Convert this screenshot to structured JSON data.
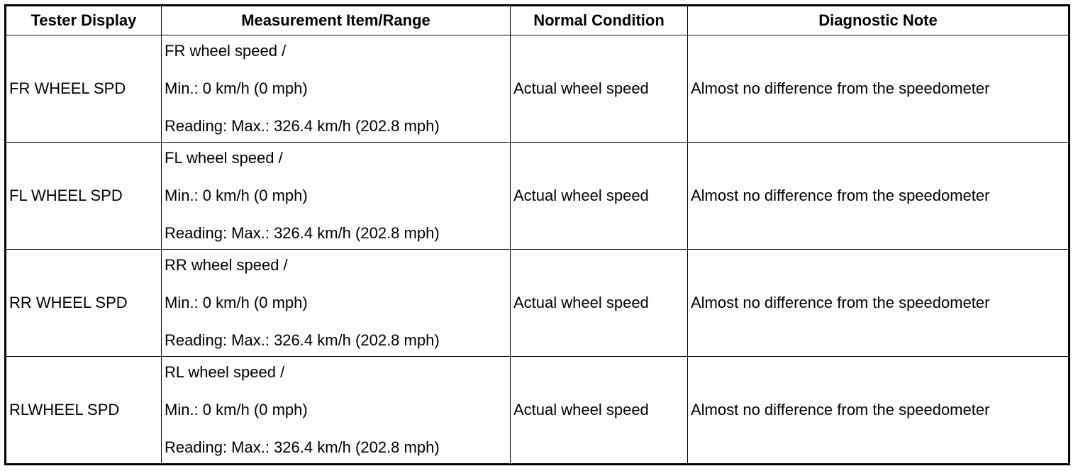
{
  "table": {
    "headers": {
      "tester_display": "Tester Display",
      "measurement": "Measurement Item/Range",
      "normal": "Normal Condition",
      "note": "Diagnostic Note"
    },
    "rows": [
      {
        "tester_display": "FR WHEEL SPD",
        "item": "FR wheel speed /",
        "min": "Min.: 0 km/h (0 mph)",
        "max": "Reading: Max.: 326.4 km/h (202.8 mph)",
        "normal": "Actual wheel speed",
        "note": "Almost no difference from the speedometer"
      },
      {
        "tester_display": "FL WHEEL SPD",
        "item": "FL wheel speed /",
        "min": "Min.: 0 km/h (0 mph)",
        "max": "Reading: Max.: 326.4 km/h (202.8 mph)",
        "normal": "Actual wheel speed",
        "note": "Almost no difference from the speedometer"
      },
      {
        "tester_display": "RR WHEEL SPD",
        "item": "RR wheel speed /",
        "min": "Min.: 0 km/h (0 mph)",
        "max": "Reading: Max.: 326.4 km/h (202.8 mph)",
        "normal": "Actual wheel speed",
        "note": "Almost no difference from the speedometer"
      },
      {
        "tester_display": "RLWHEEL SPD",
        "item": "RL wheel speed /",
        "min": "Min.: 0 km/h (0 mph)",
        "max": "Reading: Max.: 326.4 km/h (202.8 mph)",
        "normal": "Actual wheel speed",
        "note": "Almost no difference from the speedometer"
      }
    ]
  }
}
